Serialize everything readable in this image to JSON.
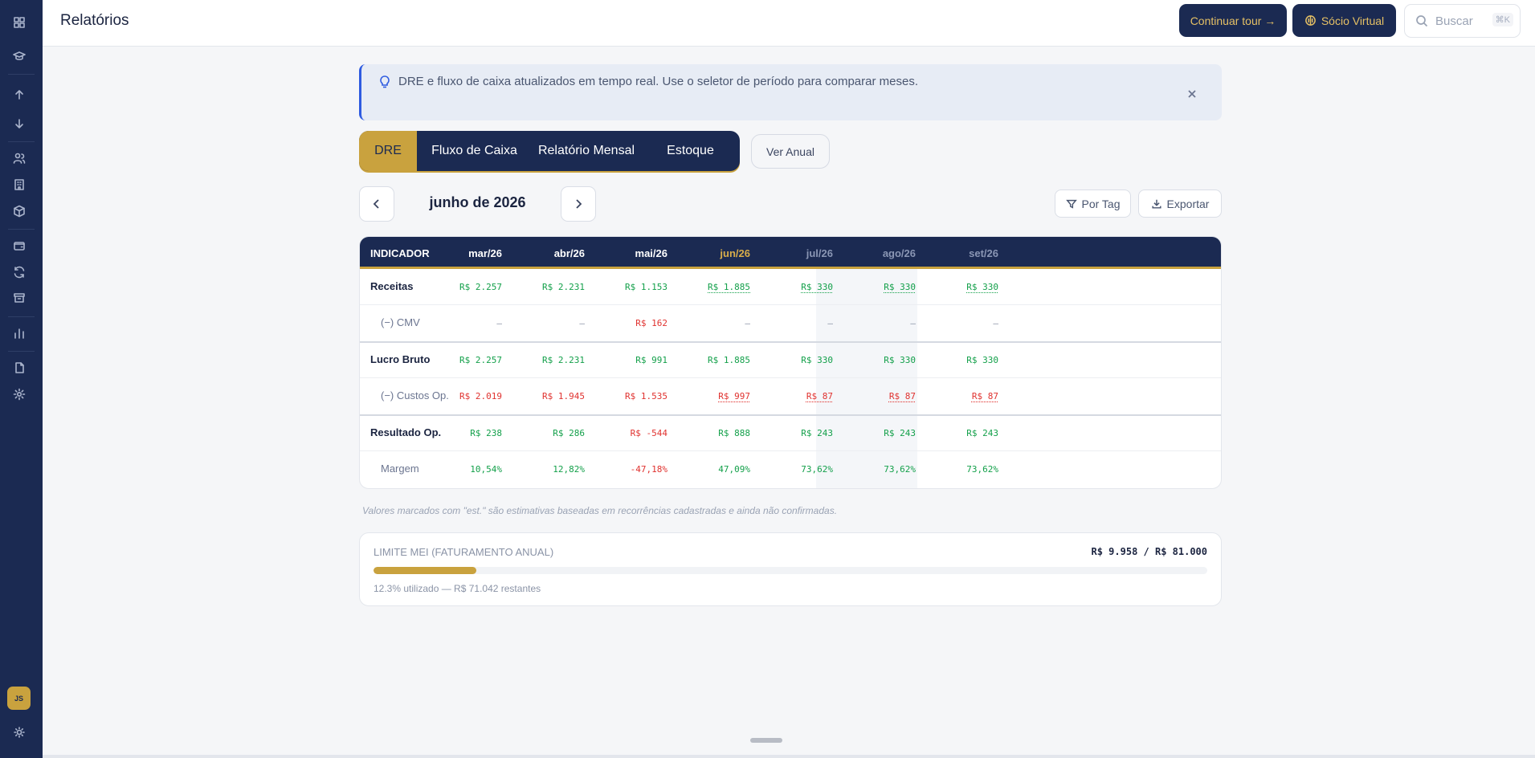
{
  "header": {
    "title": "Relatórios",
    "tour_button": "Continuar tour →",
    "socio_button": "Sócio Virtual",
    "search_placeholder": "Buscar",
    "search_shortcut": "⌘K"
  },
  "sidebar": {
    "icons": [
      "dashboard-icon",
      "graduation-icon",
      "arrow-up-icon",
      "arrow-down-icon",
      "users-icon",
      "building-icon",
      "box-icon",
      "wallet-icon",
      "refresh-icon",
      "archive-icon",
      "bar-chart-icon",
      "file-icon",
      "settings-icon"
    ],
    "avatar_initials": "JS",
    "theme_icon": "sun-icon"
  },
  "banner": {
    "text": "DRE e fluxo de caixa atualizados em tempo real. Use o seletor de período para comparar meses."
  },
  "tabs": [
    "DRE",
    "Fluxo de Caixa",
    "Relatório Mensal",
    "Estoque"
  ],
  "active_tab": "DRE",
  "ver_anual": "Ver Anual",
  "period": {
    "label": "junho de 2026"
  },
  "actions": {
    "por_tag": "Por Tag",
    "exportar": "Exportar"
  },
  "table": {
    "header_label": "INDICADOR",
    "columns": [
      "mar/26",
      "abr/26",
      "mai/26",
      "jun/26",
      "jul/26",
      "ago/26",
      "set/26"
    ],
    "rows": [
      {
        "label": "Receitas",
        "values": [
          "R$ 2.257",
          "R$ 2.231",
          "R$ 1.153",
          "R$ 1.885",
          "R$ 330",
          "R$ 330",
          "R$ 330"
        ]
      },
      {
        "label": "(−) CMV",
        "values": [
          "—",
          "—",
          "R$ 162",
          "—",
          "—",
          "—",
          "—"
        ]
      },
      {
        "label": "Lucro Bruto",
        "values": [
          "R$ 2.257",
          "R$ 2.231",
          "R$ 991",
          "R$ 1.885",
          "R$ 330",
          "R$ 330",
          "R$ 330"
        ]
      },
      {
        "label": "(−) Custos Op.",
        "values": [
          "R$ 2.019",
          "R$ 1.945",
          "R$ 1.535",
          "R$ 997",
          "R$ 87",
          "R$ 87",
          "R$ 87"
        ]
      },
      {
        "label": "Resultado Op.",
        "values": [
          "R$ 238",
          "R$ 286",
          "R$ -544",
          "R$ 888",
          "R$ 243",
          "R$ 243",
          "R$ 243"
        ]
      },
      {
        "label": "Margem",
        "values": [
          "10,54%",
          "12,82%",
          "-47,18%",
          "47,09%",
          "73,62%",
          "73,62%",
          "73,62%"
        ]
      }
    ]
  },
  "footnote": "Valores marcados com \"est.\" são estimativas baseadas em recorrências cadastradas e ainda não confirmadas.",
  "mei": {
    "title": "LIMITE MEI (FATURAMENTO ANUAL)",
    "value": "R$ 9.958 / R$ 81.000",
    "progress_fraction": 0.123,
    "subtitle": "12.3% utilizado — R$ 71.042 restantes"
  },
  "colors": {
    "navy": "#1b2a52",
    "gold": "#c9a23e",
    "positive": "#13a04a",
    "negative": "#e0322f",
    "info": "#2e5be0"
  }
}
